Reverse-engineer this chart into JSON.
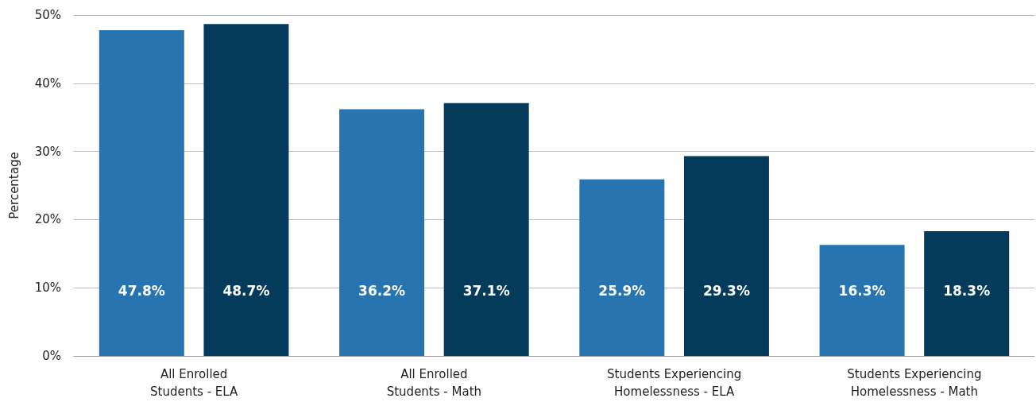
{
  "chart_data": {
    "type": "bar",
    "ylabel": "Percentage",
    "categories": [
      "All Enrolled\nStudents - ELA",
      "All Enrolled\nStudents - Math",
      "Students Experiencing\nHomelessness - ELA",
      "Students Experiencing\nHomelessness - Math"
    ],
    "series": [
      {
        "color": "#2874b0",
        "values": [
          47.8,
          36.2,
          25.9,
          16.3
        ],
        "value_labels": [
          "47.8%",
          "36.2%",
          "25.9%",
          "16.3%"
        ]
      },
      {
        "color": "#043a5a",
        "values": [
          48.7,
          37.1,
          29.3,
          18.3
        ],
        "value_labels": [
          "48.7%",
          "37.1%",
          "29.3%",
          "18.3%"
        ]
      }
    ],
    "ylim": [
      0,
      50
    ],
    "yticks": [
      {
        "value": 0,
        "label": "0%"
      },
      {
        "value": 10,
        "label": "10%"
      },
      {
        "value": 20,
        "label": "20%"
      },
      {
        "value": 30,
        "label": "30%"
      },
      {
        "value": 40,
        "label": "40%"
      },
      {
        "value": 50,
        "label": "50%"
      }
    ],
    "grid": "y"
  }
}
